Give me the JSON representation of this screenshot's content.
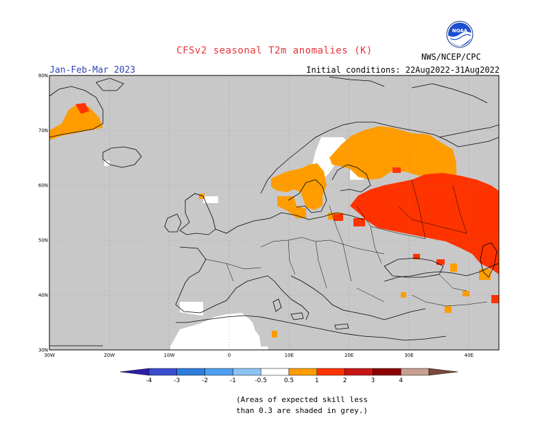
{
  "header": {
    "title": "CFSv2 seasonal T2m anomalies (K)",
    "season": "Jan-Feb-Mar 2023",
    "initial_conditions": "Initial conditions: 22Aug2022-31Aug2022",
    "agency": "NWS/NCEP/CPC",
    "logo_text": "NOAA"
  },
  "map": {
    "projection": "lat-lon",
    "lon_range": [
      -30,
      45
    ],
    "lat_range": [
      30,
      80
    ],
    "lat_ticks": [
      "30N",
      "40N",
      "50N",
      "60N",
      "70N",
      "80N"
    ],
    "lon_ticks": [
      "30W",
      "20W",
      "10W",
      "0",
      "10E",
      "20E",
      "30E",
      "40E"
    ],
    "gridlines": "dotted",
    "background_color": "#c8c8c8",
    "ocean_low_skill_color": "#c8c8c8"
  },
  "colorbar": {
    "tick_labels": [
      "-4",
      "-3",
      "-2",
      "-1",
      "-0.5",
      "0.5",
      "1",
      "2",
      "3",
      "4"
    ],
    "colors": [
      "#2b1fa8",
      "#3a4dcf",
      "#2f7ddc",
      "#4e9ff0",
      "#8ec3f7",
      "#ffffff",
      "#ff9d00",
      "#ff3300",
      "#c81414",
      "#8b0000",
      "#c8a092",
      "#7a4a3d"
    ]
  },
  "footnote": {
    "line1": "(Areas of expected skill less",
    "line2": "than 0.3 are shaded in grey.)"
  },
  "anomaly_regions": [
    {
      "name": "Eastern Europe / Western Russia",
      "color": "#ff3300",
      "range_k": "1 to 2",
      "lon": [
        18,
        45
      ],
      "lat": [
        45,
        60
      ]
    },
    {
      "name": "Scandinavia and Northwest Russia",
      "color": "#ff9d00",
      "range_k": "0.5 to 1",
      "lon": [
        6,
        40
      ],
      "lat": [
        55,
        72
      ]
    },
    {
      "name": "Southern Greenland coast",
      "color": "#ff9d00",
      "range_k": "0.5 to 1",
      "lon": [
        -30,
        -20
      ],
      "lat": [
        68,
        75
      ]
    },
    {
      "name": "Iberia and North Africa (low anomaly, skilled)",
      "color": "#ffffff",
      "range_k": "-0.5 to 0.5",
      "lon": [
        -10,
        5
      ],
      "lat": [
        30,
        40
      ]
    }
  ]
}
